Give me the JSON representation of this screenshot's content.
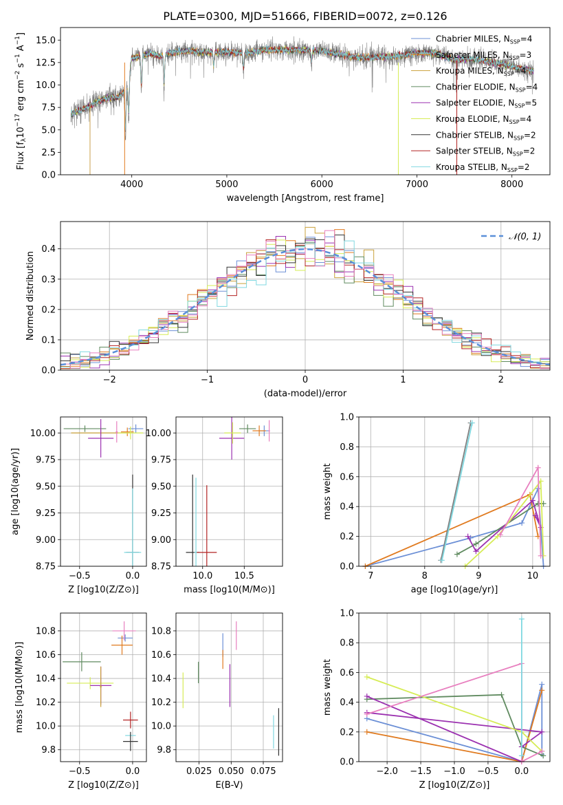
{
  "figure_title": "PLATE=0300, MJD=51666, FIBERID=0072, z=0.126",
  "colors": {
    "Chabrier MILES": "#6b8fd6",
    "Salpeter MILES": "#e07a1f",
    "Kroupa MILES": "#c9a13a",
    "Chabrier ELODIE": "#5f8a5f",
    "Salpeter ELODIE": "#9b30b0",
    "Kroupa ELODIE": "#d6ec55",
    "Chabrier STELIB": "#333333",
    "Salpeter STELIB": "#b22222",
    "Kroupa STELIB": "#7fd8e0",
    "pink": "#e87fbf",
    "gray": "#808080"
  },
  "chart_data": [
    {
      "id": "spectrum",
      "type": "line",
      "title": "PLATE=0300, MJD=51666, FIBERID=0072, z=0.126",
      "xlabel": "wavelength [Angstrom, rest frame]",
      "ylabel": "Flux [f_λ 10^-17 erg cm^-2 s^-1 A^-1]",
      "xlim": [
        3250,
        8400
      ],
      "ylim": [
        0,
        16.4
      ],
      "xticks": [
        4000,
        5000,
        6000,
        7000,
        8000
      ],
      "yticks": [
        "0.0",
        "2.5",
        "5.0",
        "7.5",
        "10.0",
        "12.5",
        "15.0"
      ],
      "grid": false,
      "legend_position": "upper-right",
      "legend": [
        {
          "name": "Chabrier MILES",
          "nssp": "4",
          "color": "#6b8fd6"
        },
        {
          "name": "Salpeter MILES",
          "nssp": "3",
          "color": "#e07a1f"
        },
        {
          "name": "Kroupa MILES",
          "nssp": "4",
          "color": "#c9a13a"
        },
        {
          "name": "Chabrier ELODIE",
          "nssp": "4",
          "color": "#5f8a5f"
        },
        {
          "name": "Salpeter ELODIE",
          "nssp": "5",
          "color": "#9b30b0"
        },
        {
          "name": "Kroupa ELODIE",
          "nssp": "4",
          "color": "#d6ec55"
        },
        {
          "name": "Chabrier STELIB",
          "nssp": "2",
          "color": "#333333"
        },
        {
          "name": "Salpeter STELIB",
          "nssp": "2",
          "color": "#b22222"
        },
        {
          "name": "Kroupa STELIB",
          "nssp": "2",
          "color": "#7fd8e0"
        }
      ],
      "continuum": [
        [
          3360,
          6.8
        ],
        [
          3450,
          7.2
        ],
        [
          3550,
          7.6
        ],
        [
          3650,
          8.2
        ],
        [
          3750,
          8.6
        ],
        [
          3850,
          8.6
        ],
        [
          3950,
          9.5
        ],
        [
          4000,
          13.0
        ],
        [
          4100,
          13.3
        ],
        [
          4200,
          13.5
        ],
        [
          4300,
          13.2
        ],
        [
          4400,
          13.6
        ],
        [
          4600,
          13.8
        ],
        [
          4800,
          13.6
        ],
        [
          5000,
          13.7
        ],
        [
          5200,
          13.5
        ],
        [
          5400,
          13.9
        ],
        [
          5600,
          13.9
        ],
        [
          5800,
          13.9
        ],
        [
          6000,
          13.8
        ],
        [
          6200,
          13.4
        ],
        [
          6400,
          13.0
        ],
        [
          6600,
          13.1
        ],
        [
          6800,
          13.2
        ],
        [
          7000,
          13.6
        ],
        [
          7200,
          13.5
        ],
        [
          7400,
          12.8
        ],
        [
          7600,
          12.9
        ],
        [
          7800,
          12.5
        ],
        [
          8000,
          12.1
        ],
        [
          8200,
          11.6
        ]
      ],
      "absorption_lines": [
        [
          3933,
          4.0
        ],
        [
          3968,
          6.0
        ],
        [
          4101,
          9.0
        ],
        [
          4340,
          9.5
        ],
        [
          4861,
          11.8
        ],
        [
          5175,
          11.5
        ],
        [
          5890,
          12.2
        ]
      ],
      "model_start_wavelength": 3550,
      "model_end_wavelength": 8280
    },
    {
      "id": "residuals",
      "type": "step",
      "xlabel": "(data-model)/error",
      "ylabel": "Normed distribution",
      "xlim": [
        -2.5,
        2.5
      ],
      "ylim": [
        0,
        0.49
      ],
      "xticks": [
        "−2",
        "−1",
        "0",
        "1",
        "2"
      ],
      "yticks": [
        "0.0",
        "0.1",
        "0.2",
        "0.3",
        "0.4"
      ],
      "grid": true,
      "legend": [
        {
          "name": "𝒩(0, 1)",
          "color": "#5b8fd9",
          "style": "dashed"
        }
      ],
      "legend_position": "upper-right",
      "bin_width": 0.1
    },
    {
      "id": "age_vs_Z",
      "type": "errorbar",
      "xlabel": "Z [log10(Z/Z⊙)]",
      "ylabel": "age [log10(age/yr)]",
      "xlim": [
        -0.68,
        0.13
      ],
      "ylim": [
        8.75,
        10.15
      ],
      "xticks": [
        "−0.5",
        "0.0"
      ],
      "yticks": [
        "8.75",
        "9.00",
        "9.25",
        "9.50",
        "9.75",
        "10.00"
      ],
      "grid": true,
      "points": [
        {
          "x": 0.03,
          "y": 10.04,
          "xerr": 0.07,
          "yerr": 0.04,
          "color": "#6b8fd6"
        },
        {
          "x": -0.05,
          "y": 10.01,
          "xerr": 0.06,
          "yerr": 0.04,
          "color": "#e07a1f"
        },
        {
          "x": -0.3,
          "y": 10.0,
          "xerr": 0.28,
          "yerr": 0.03,
          "color": "#c9a13a"
        },
        {
          "x": -0.45,
          "y": 10.04,
          "xerr": 0.2,
          "yerr": 0.03,
          "color": "#5f8a5f"
        },
        {
          "x": -0.3,
          "y": 9.95,
          "xerr": 0.12,
          "yerr": 0.18,
          "color": "#9b30b0"
        },
        {
          "x": -0.02,
          "y": 10.0,
          "xerr": 0.12,
          "yerr": 0.06,
          "color": "#d6ec55"
        },
        {
          "x": -0.15,
          "y": 10.01,
          "xerr": 0.01,
          "yerr": 0.1,
          "color": "#e87fbf"
        },
        {
          "x": 0.0,
          "y": 8.88,
          "xerr": 0.06,
          "yerr": 0.73,
          "color": "#333333"
        },
        {
          "x": 0.0,
          "y": 8.88,
          "xerr": 0.08,
          "yerr": 0.6,
          "color": "#7fd8e0"
        }
      ]
    },
    {
      "id": "age_vs_mass",
      "type": "errorbar",
      "xlabel": "mass [log10(M/M⊙)]",
      "ylabel": "",
      "xlim": [
        9.68,
        10.96
      ],
      "ylim": [
        8.75,
        10.15
      ],
      "xticks": [
        "10.0",
        "10.5"
      ],
      "yticks": [
        "8.75",
        "9.00",
        "9.25",
        "9.50",
        "9.75",
        "10.00"
      ],
      "grid": true,
      "points": [
        {
          "x": 10.74,
          "y": 10.02,
          "xerr": 0.06,
          "yerr": 0.05,
          "color": "#6b8fd6"
        },
        {
          "x": 10.68,
          "y": 10.02,
          "xerr": 0.08,
          "yerr": 0.05,
          "color": "#e07a1f"
        },
        {
          "x": 10.54,
          "y": 10.04,
          "xerr": 0.1,
          "yerr": 0.04,
          "color": "#5f8a5f"
        },
        {
          "x": 10.35,
          "y": 9.95,
          "xerr": 0.15,
          "yerr": 0.2,
          "color": "#9b30b0"
        },
        {
          "x": 10.36,
          "y": 10.0,
          "xerr": 0.1,
          "yerr": 0.1,
          "color": "#d6ec55"
        },
        {
          "x": 10.8,
          "y": 10.02,
          "xerr": 0.01,
          "yerr": 0.1,
          "color": "#e87fbf"
        },
        {
          "x": 9.88,
          "y": 8.88,
          "xerr": 0.08,
          "yerr": 0.73,
          "color": "#333333"
        },
        {
          "x": 9.92,
          "y": 8.88,
          "xerr": 0.02,
          "yerr": 0.7,
          "color": "#7fd8e0"
        },
        {
          "x": 10.05,
          "y": 8.88,
          "xerr": 0.12,
          "yerr": 0.63,
          "color": "#b22222"
        }
      ]
    },
    {
      "id": "weight_vs_age",
      "type": "line",
      "xlabel": "age [log10(age/yr)]",
      "ylabel": "mass weight",
      "xlim": [
        6.78,
        10.32
      ],
      "ylim": [
        0.0,
        1.0
      ],
      "xticks": [
        "7",
        "8",
        "9",
        "10"
      ],
      "yticks": [
        "0.0",
        "0.2",
        "0.4",
        "0.6",
        "0.8",
        "1.0"
      ],
      "grid": true,
      "series": [
        {
          "color": "#6b8fd6",
          "points": [
            [
              6.9,
              0.0
            ],
            [
              8.85,
              0.19
            ],
            [
              9.8,
              0.29
            ],
            [
              10.1,
              0.52
            ],
            [
              10.2,
              0.0
            ]
          ]
        },
        {
          "color": "#e07a1f",
          "points": [
            [
              6.9,
              0.0
            ],
            [
              9.95,
              0.48
            ],
            [
              10.1,
              0.2
            ]
          ]
        },
        {
          "color": "#5f8a5f",
          "points": [
            [
              8.6,
              0.08
            ],
            [
              8.95,
              0.15
            ],
            [
              10.1,
              0.42
            ],
            [
              10.2,
              0.42
            ]
          ]
        },
        {
          "color": "#9b30b0",
          "points": [
            [
              8.8,
              0.2
            ],
            [
              8.95,
              0.1
            ],
            [
              10.0,
              0.44
            ],
            [
              10.15,
              0.26
            ],
            [
              10.05,
              0.34
            ]
          ]
        },
        {
          "color": "#d6ec55",
          "points": [
            [
              8.75,
              0.0
            ],
            [
              9.35,
              0.2
            ],
            [
              10.15,
              0.57
            ],
            [
              10.2,
              0.07
            ]
          ]
        },
        {
          "color": "#e87fbf",
          "points": [
            [
              9.4,
              0.21
            ],
            [
              10.1,
              0.66
            ],
            [
              10.15,
              0.07
            ]
          ]
        },
        {
          "color": "#808080",
          "points": [
            [
              8.3,
              0.04
            ],
            [
              8.85,
              0.96
            ]
          ]
        },
        {
          "color": "#7fd8e0",
          "points": [
            [
              8.32,
              0.04
            ],
            [
              8.88,
              0.96
            ]
          ]
        }
      ]
    },
    {
      "id": "mass_vs_Z",
      "type": "errorbar",
      "xlabel": "Z [log10(Z/Z⊙)]",
      "ylabel": "mass [log10(M/M⊙)]",
      "xlim": [
        -0.68,
        0.13
      ],
      "ylim": [
        9.7,
        10.95
      ],
      "xticks": [
        "−0.5",
        "0.0"
      ],
      "yticks": [
        "9.8",
        "10.0",
        "10.2",
        "10.4",
        "10.6",
        "10.8"
      ],
      "grid": true,
      "points": [
        {
          "x": -0.07,
          "y": 10.74,
          "xerr": 0.07,
          "yerr": 0.03,
          "color": "#6b8fd6"
        },
        {
          "x": -0.1,
          "y": 10.68,
          "xerr": 0.1,
          "yerr": 0.08,
          "color": "#e07a1f"
        },
        {
          "x": -0.08,
          "y": 10.8,
          "xerr": 0.11,
          "yerr": 0.08,
          "color": "#e87fbf"
        },
        {
          "x": -0.48,
          "y": 10.54,
          "xerr": 0.18,
          "yerr": 0.08,
          "color": "#5f8a5f"
        },
        {
          "x": -0.4,
          "y": 10.36,
          "xerr": 0.22,
          "yerr": 0.05,
          "color": "#d6ec55"
        },
        {
          "x": -0.3,
          "y": 10.34,
          "xerr": 0.1,
          "yerr": 0.16,
          "color": "#9b30b0"
        },
        {
          "x": -0.3,
          "y": 10.33,
          "xerr": 0.01,
          "yerr": 0.17,
          "color": "#c9a13a"
        },
        {
          "x": -0.02,
          "y": 10.05,
          "xerr": 0.07,
          "yerr": 0.07,
          "color": "#b22222"
        },
        {
          "x": -0.02,
          "y": 9.92,
          "xerr": 0.05,
          "yerr": 0.01,
          "color": "#7fd8e0"
        },
        {
          "x": -0.02,
          "y": 9.87,
          "xerr": 0.07,
          "yerr": 0.08,
          "color": "#333333"
        }
      ]
    },
    {
      "id": "mass_vs_EBV",
      "type": "errorbar",
      "xlabel": "E(B-V)",
      "ylabel": "",
      "xlim": [
        0.007,
        0.09
      ],
      "ylim": [
        9.7,
        10.95
      ],
      "xticks": [
        "0.025",
        "0.050",
        "0.075"
      ],
      "yticks": [
        "9.8",
        "10.0",
        "10.2",
        "10.4",
        "10.6",
        "10.8"
      ],
      "grid": true,
      "points": [
        {
          "x": 0.0125,
          "y": 10.3,
          "xerr": 0.0,
          "yerr": 0.15,
          "color": "#d6ec55"
        },
        {
          "x": 0.0245,
          "y": 10.45,
          "xerr": 0.0,
          "yerr": 0.09,
          "color": "#5f8a5f"
        },
        {
          "x": 0.0435,
          "y": 10.68,
          "xerr": 0.0,
          "yerr": 0.1,
          "color": "#6b8fd6"
        },
        {
          "x": 0.0435,
          "y": 10.56,
          "xerr": 0.0,
          "yerr": 0.08,
          "color": "#e07a1f"
        },
        {
          "x": 0.049,
          "y": 10.34,
          "xerr": 0.0,
          "yerr": 0.18,
          "color": "#9b30b0"
        },
        {
          "x": 0.054,
          "y": 10.76,
          "xerr": 0.0,
          "yerr": 0.12,
          "color": "#e87fbf"
        },
        {
          "x": 0.083,
          "y": 9.95,
          "xerr": 0.0,
          "yerr": 0.14,
          "color": "#7fd8e0"
        },
        {
          "x": 0.087,
          "y": 9.95,
          "xerr": 0.0,
          "yerr": 0.2,
          "color": "#333333"
        }
      ]
    },
    {
      "id": "weight_vs_Z",
      "type": "line",
      "xlabel": "Z [log10(Z/Z⊙)]",
      "ylabel": "mass weight",
      "xlim": [
        -2.42,
        0.42
      ],
      "ylim": [
        0.0,
        1.0
      ],
      "xticks": [
        "−2.0",
        "−1.5",
        "−1.0",
        "−0.5",
        "0.0"
      ],
      "yticks": [
        "0.0",
        "0.2",
        "0.4",
        "0.6",
        "0.8",
        "1.0"
      ],
      "grid": true,
      "series": [
        {
          "color": "#6b8fd6",
          "points": [
            [
              -2.3,
              0.29
            ],
            [
              0.0,
              0.0
            ],
            [
              0.3,
              0.52
            ],
            [
              0.3,
              0.05
            ]
          ]
        },
        {
          "color": "#e07a1f",
          "points": [
            [
              -2.3,
              0.2
            ],
            [
              0.0,
              0.0
            ],
            [
              0.3,
              0.48
            ]
          ]
        },
        {
          "color": "#5f8a5f",
          "points": [
            [
              -2.3,
              0.42
            ],
            [
              -0.3,
              0.45
            ],
            [
              0.0,
              0.1
            ],
            [
              0.32,
              0.04
            ]
          ]
        },
        {
          "color": "#9b30b0",
          "points": [
            [
              -2.3,
              0.44
            ],
            [
              0.0,
              0.0
            ],
            [
              0.0,
              0.1
            ],
            [
              0.3,
              0.2
            ],
            [
              -2.3,
              0.33
            ]
          ]
        },
        {
          "color": "#d6ec55",
          "points": [
            [
              -2.3,
              0.57
            ],
            [
              0.0,
              0.2
            ],
            [
              0.3,
              0.07
            ]
          ]
        },
        {
          "color": "#e87fbf",
          "points": [
            [
              -2.3,
              0.32
            ],
            [
              0.0,
              0.66
            ],
            [
              0.0,
              0.0
            ],
            [
              0.3,
              0.07
            ]
          ]
        },
        {
          "color": "#7fd8e0",
          "points": [
            [
              0.0,
              0.96
            ],
            [
              0.0,
              0.04
            ]
          ]
        }
      ]
    }
  ]
}
